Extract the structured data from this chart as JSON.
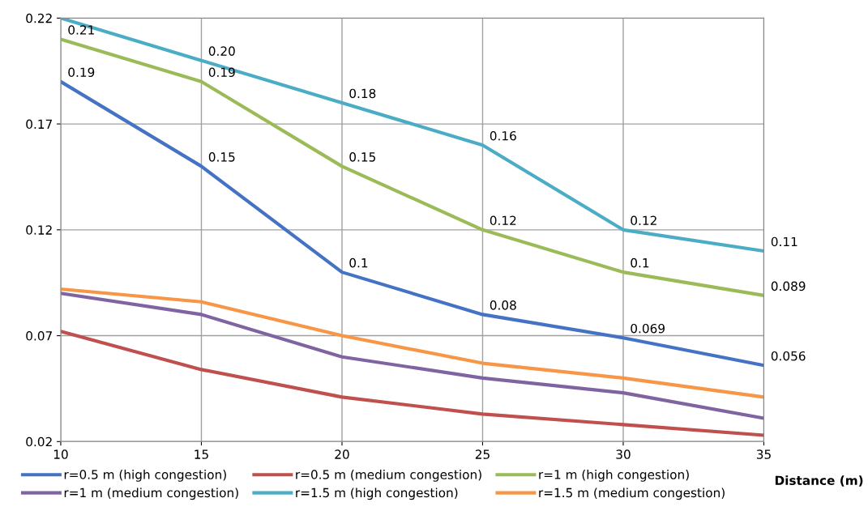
{
  "chart_data": {
    "type": "line",
    "xlabel": "Distance (m)",
    "x": [
      10,
      15,
      20,
      25,
      30,
      35
    ],
    "series": [
      {
        "name": "r=0.5 m (high congestion)",
        "color": "#4472c4",
        "values": [
          0.19,
          0.15,
          0.1,
          0.08,
          0.069,
          0.056
        ],
        "value_labels": [
          "0.19",
          "0.15",
          "0.1",
          "0.08",
          "0.069",
          "0.056"
        ]
      },
      {
        "name": "r=0.5 m (medium congestion)",
        "color": "#c0504d",
        "values": [
          0.072,
          0.054,
          0.041,
          0.033,
          0.028,
          0.023
        ]
      },
      {
        "name": "r=1 m (high congestion)",
        "color": "#9bbb59",
        "values": [
          0.21,
          0.19,
          0.15,
          0.12,
          0.1,
          0.089
        ],
        "value_labels": [
          "0.21",
          "0.19",
          "0.15",
          "0.12",
          "0.1",
          "0.089"
        ]
      },
      {
        "name": "r=1 m (medium congestion)",
        "color": "#8064a2",
        "values": [
          0.09,
          0.08,
          0.06,
          0.05,
          0.043,
          0.031
        ]
      },
      {
        "name": "r=1.5 m (high congestion)",
        "color": "#4bacc6",
        "values": [
          0.22,
          0.2,
          0.18,
          0.16,
          0.12,
          0.11
        ],
        "value_labels": [
          null,
          "0.20",
          "0.18",
          "0.16",
          "0.12",
          "0.11"
        ]
      },
      {
        "name": "r=1.5 m (medium congestion)",
        "color": "#f79646",
        "values": [
          0.092,
          0.086,
          0.07,
          0.057,
          0.05,
          0.041
        ]
      }
    ],
    "xlim": [
      10,
      35
    ],
    "xticks": [
      10,
      15,
      20,
      25,
      30,
      35
    ],
    "ylim": [
      0.02,
      0.22
    ],
    "yticks": [
      0.02,
      0.07,
      0.12,
      0.17,
      0.22
    ],
    "grid": true,
    "legend": "bottom",
    "marker": "none",
    "line_style": "solid"
  }
}
